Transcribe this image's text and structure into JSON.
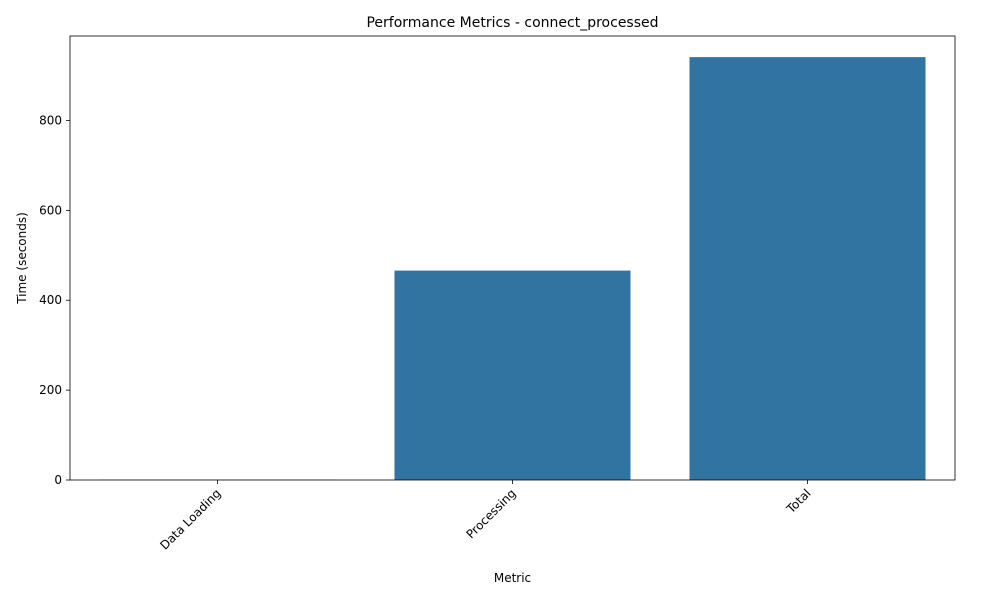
{
  "chart_data": {
    "type": "bar",
    "title": "Performance Metrics - connect_processed",
    "xlabel": "Metric",
    "ylabel": "Time (seconds)",
    "categories": [
      "Data Loading",
      "Processing",
      "Total"
    ],
    "values": [
      0.5,
      466,
      941
    ],
    "ylim": [
      0,
      988
    ],
    "yticks": [
      0,
      200,
      400,
      600,
      800
    ],
    "ytick_labels": [
      "0",
      "200",
      "400",
      "600",
      "800"
    ],
    "bar_color": "#3274a1",
    "grid": false,
    "legend": "none",
    "xtick_rotation_deg": 45
  }
}
